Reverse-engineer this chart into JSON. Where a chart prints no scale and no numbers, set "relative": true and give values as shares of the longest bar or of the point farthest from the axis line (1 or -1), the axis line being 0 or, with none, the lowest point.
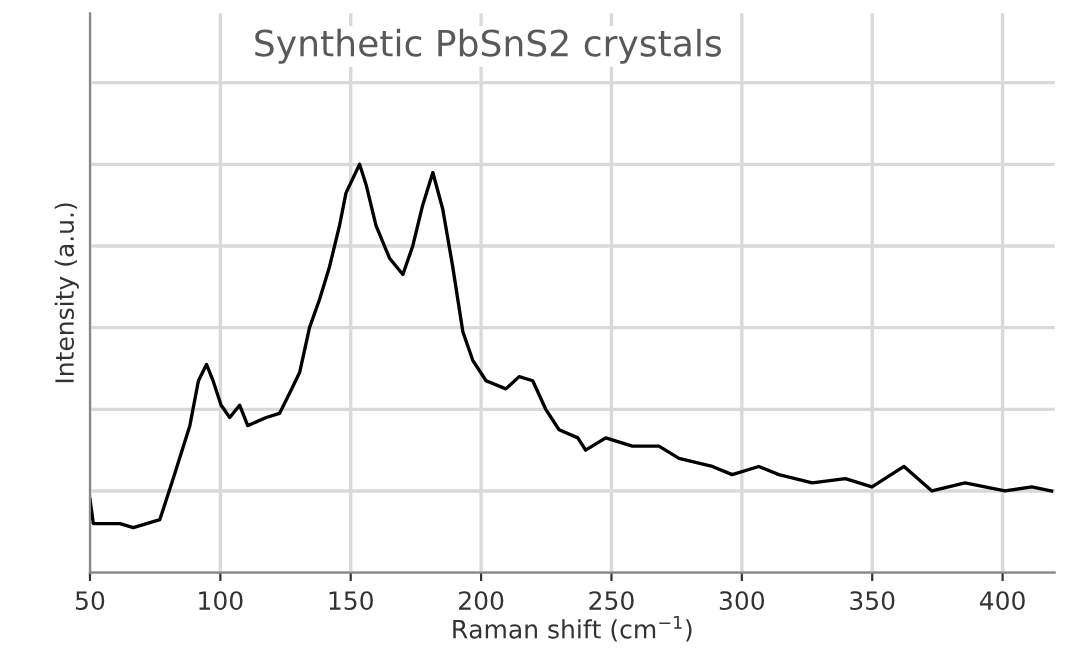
{
  "chart_data": {
    "type": "line",
    "title": "Synthetic PbSnS2 crystals",
    "xlabel": "Raman shift (cm$^{−1}$)",
    "ylabel": "Intensity (a.u.)",
    "relative": true,
    "grid": true,
    "legend": false,
    "marker": "none",
    "line_style": "solid",
    "xlim": [
      50,
      420
    ],
    "xticks": [
      50,
      100,
      150,
      200,
      250,
      300,
      350,
      400
    ],
    "series": [
      {
        "color": "#000000",
        "x": [
          50,
          51.3,
          61.5,
          66.6,
          76.8,
          81.9,
          88.3,
          91.6,
          94.7,
          97.2,
          100.3,
          103.6,
          107.4,
          110.5,
          117.6,
          122.7,
          126.6,
          130.4,
          134.2,
          138.1,
          141.9,
          145.7,
          148.2,
          153.4,
          155.9,
          159.7,
          164.9,
          170,
          173.8,
          177.6,
          181.5,
          185.3,
          189.1,
          193,
          196.8,
          201.9,
          209.5,
          214.6,
          219.8,
          224.8,
          229.9,
          237.1,
          240.1,
          247.8,
          258,
          268.2,
          275.9,
          288.7,
          296.3,
          306.5,
          314.2,
          327,
          339.7,
          349.9,
          362.2,
          372.9,
          385.6,
          400.9,
          411.2,
          418.8
        ],
        "values": [
          0.18,
          0.12,
          0.12,
          0.11,
          0.13,
          0.23,
          0.36,
          0.47,
          0.51,
          0.47,
          0.41,
          0.38,
          0.41,
          0.36,
          0.38,
          0.39,
          0.44,
          0.49,
          0.6,
          0.67,
          0.75,
          0.85,
          0.93,
          1.0,
          0.95,
          0.85,
          0.77,
          0.73,
          0.8,
          0.9,
          0.98,
          0.89,
          0.75,
          0.59,
          0.52,
          0.47,
          0.45,
          0.48,
          0.47,
          0.4,
          0.35,
          0.33,
          0.3,
          0.33,
          0.31,
          0.31,
          0.28,
          0.26,
          0.24,
          0.26,
          0.24,
          0.22,
          0.23,
          0.21,
          0.26,
          0.2,
          0.22,
          0.2,
          0.21,
          0.2
        ]
      }
    ]
  }
}
